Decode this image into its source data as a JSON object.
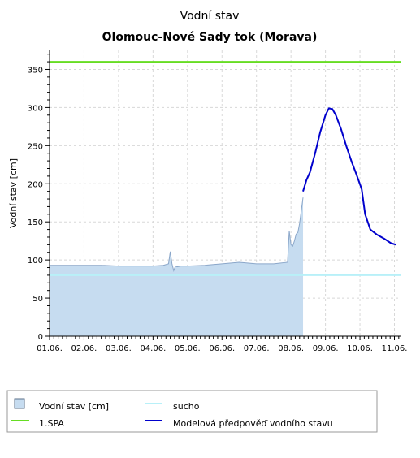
{
  "chart_data": {
    "type": "area",
    "title": "Vodní stav",
    "subtitle": "Olomouc-Nové Sady tok (Morava)",
    "ylabel": "Vodní stav [cm]",
    "xlabel": "",
    "ylim": [
      0,
      375
    ],
    "xlim": [
      1,
      11.2
    ],
    "y_ticks": [
      0,
      50,
      100,
      150,
      200,
      250,
      300,
      350
    ],
    "x_ticks": [
      1,
      2,
      3,
      4,
      5,
      6,
      7,
      8,
      9,
      10,
      11
    ],
    "x_tick_labels": [
      "01.06.",
      "02.06.",
      "03.06.",
      "04.06.",
      "05.06.",
      "06.06.",
      "07.06.",
      "08.06.",
      "09.06.",
      "10.06.",
      "11.06."
    ],
    "grid": true,
    "legend_position": "bottom",
    "series": [
      {
        "name": "Vodní stav [cm]",
        "kind": "area",
        "color": "#c6dcf0",
        "edge_color": "#8aa6c9",
        "x": [
          1.0,
          1.5,
          2.0,
          2.5,
          3.0,
          3.5,
          4.0,
          4.3,
          4.45,
          4.5,
          4.55,
          4.6,
          4.65,
          4.7,
          4.8,
          5.0,
          5.5,
          6.0,
          6.5,
          7.0,
          7.5,
          7.9,
          7.95,
          8.0,
          8.05,
          8.1,
          8.15,
          8.2,
          8.25,
          8.3,
          8.35
        ],
        "values": [
          93,
          93,
          93,
          93,
          92,
          92,
          92,
          93,
          95,
          111,
          95,
          86,
          92,
          91,
          92,
          92,
          93,
          95,
          97,
          95,
          95,
          97,
          138,
          120,
          118,
          125,
          134,
          136,
          148,
          165,
          182
        ]
      },
      {
        "name": "sucho",
        "kind": "hline",
        "color": "#b8f0f8",
        "y": 80
      },
      {
        "name": "1.SPA",
        "kind": "hline",
        "color": "#66dd22",
        "y": 360
      },
      {
        "name": "Modelová předpověď vodního stavu",
        "kind": "line",
        "color": "#0000cc",
        "x": [
          8.35,
          8.45,
          8.55,
          8.7,
          8.85,
          9.0,
          9.1,
          9.2,
          9.3,
          9.45,
          9.6,
          9.75,
          9.9,
          10.05,
          10.15,
          10.3,
          10.5,
          10.7,
          10.9,
          11.05
        ],
        "values": [
          190,
          205,
          215,
          240,
          268,
          290,
          299,
          298,
          290,
          272,
          250,
          230,
          212,
          193,
          160,
          140,
          133,
          128,
          122,
          120
        ]
      }
    ]
  }
}
